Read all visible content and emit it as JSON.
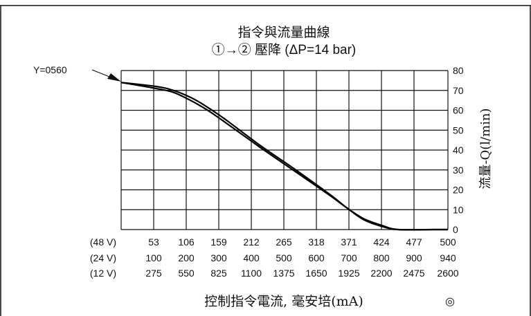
{
  "chart_data": {
    "type": "line",
    "title": "指令與流量曲線",
    "subtitle": "①→② 壓降 (ΔP=14 bar)",
    "ylabel": "流量-Q(l/min)",
    "xlabel": "控制指令電流, 毫安培(mA)",
    "ylim": [
      0,
      80
    ],
    "yticks": [
      0,
      10,
      20,
      30,
      40,
      50,
      60,
      70,
      80
    ],
    "xlim": [
      0,
      500
    ],
    "grid": true,
    "annotation": "Y=0560",
    "symbol": "◎",
    "x_axis_rows": [
      {
        "label": "(48 V)",
        "ticks": [
          "53",
          "106",
          "159",
          "212",
          "265",
          "318",
          "371",
          "424",
          "477",
          "500"
        ]
      },
      {
        "label": "(24 V)",
        "ticks": [
          "100",
          "200",
          "300",
          "400",
          "500",
          "600",
          "700",
          "800",
          "900",
          "940"
        ]
      },
      {
        "label": "(12 V)",
        "ticks": [
          "275",
          "550",
          "825",
          "1100",
          "1375",
          "1650",
          "1925",
          "2200",
          "2475",
          "2600"
        ]
      }
    ],
    "series": [
      {
        "x": [
          0,
          53,
          80,
          106,
          130,
          159,
          212,
          265,
          318,
          345,
          371,
          400,
          424,
          477,
          500
        ],
        "y": [
          74,
          72,
          70,
          66.5,
          62,
          55.5,
          42.5,
          30.5,
          18,
          11,
          5,
          1.5,
          0,
          0,
          0
        ]
      },
      {
        "x": [
          0,
          53,
          80,
          106,
          130,
          159,
          212,
          265,
          318,
          345,
          371,
          400,
          424,
          477,
          500
        ],
        "y": [
          74,
          71,
          69,
          65,
          60.5,
          54,
          41.5,
          29.5,
          17.5,
          11,
          5.5,
          2,
          0,
          0,
          0
        ]
      }
    ]
  }
}
